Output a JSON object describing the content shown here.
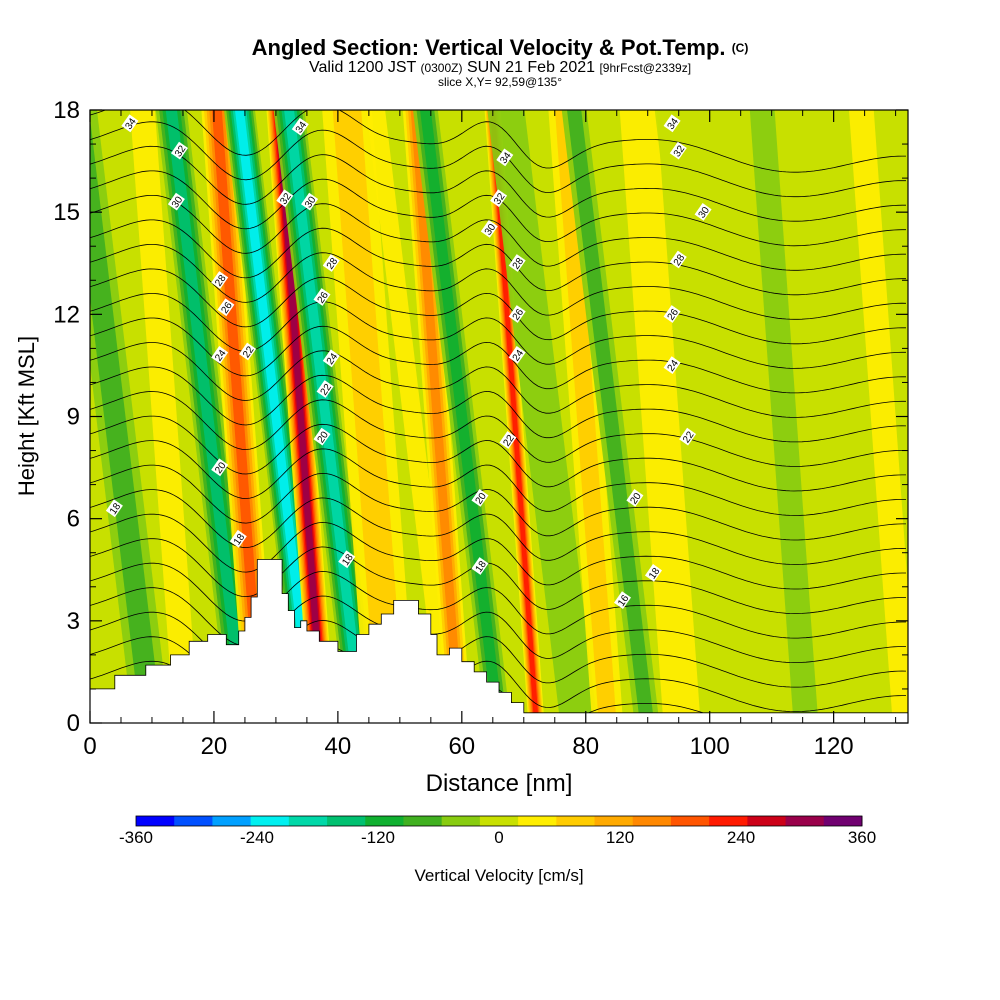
{
  "title": {
    "main": "Angled Section: Vertical Velocity & Pot.Temp.",
    "tag": "(C)",
    "valid": "Valid 1200 JST",
    "valid_zulu": "(0300Z)",
    "date": "SUN 21 Feb 2021",
    "forecast": "[9hrFcst@2339z]",
    "slice": "slice X,Y= 92,59@135°"
  },
  "chart_data": {
    "type": "heatmap",
    "title": "Angled Section: Vertical Velocity & Pot.Temp.",
    "xlabel": "Distance [nm]",
    "ylabel": "Height [Kft MSL]",
    "xlim": [
      0,
      132
    ],
    "ylim": [
      0,
      18
    ],
    "xticks": [
      0,
      20,
      40,
      60,
      80,
      100,
      120
    ],
    "yticks": [
      0,
      3,
      6,
      9,
      12,
      15,
      18
    ],
    "grid": false,
    "colorbar": {
      "label": "Vertical Velocity [cm/s]",
      "range": [
        -360,
        360
      ],
      "step": 40,
      "tick_labels": [
        "-360",
        "-240",
        "-120",
        "0",
        "120",
        "240",
        "360"
      ],
      "colors": [
        "#0000ff",
        "#0050ff",
        "#00a0ff",
        "#00f0f0",
        "#00d8a8",
        "#00c070",
        "#10b030",
        "#40b020",
        "#88cc10",
        "#c8e000",
        "#ffee00",
        "#ffcc00",
        "#ffaa00",
        "#ff8800",
        "#ff5500",
        "#ff1a00",
        "#cc0018",
        "#99004a",
        "#700070"
      ]
    },
    "velocity_bands": [
      {
        "x": 4,
        "w": 3,
        "v": -80
      },
      {
        "x": 12,
        "w": 2,
        "v": 40
      },
      {
        "x": 19,
        "w": 2.5,
        "v": -160
      },
      {
        "x": 24,
        "w": 2.5,
        "v": 230
      },
      {
        "x": 30,
        "w": 2.5,
        "v": -250
      },
      {
        "x": 34,
        "w": 2,
        "v": 340
      },
      {
        "x": 38,
        "w": 2.5,
        "v": -200
      },
      {
        "x": 45,
        "w": 4,
        "v": 90
      },
      {
        "x": 52,
        "w": 1.5,
        "v": 40
      },
      {
        "x": 56,
        "w": 2,
        "v": 160
      },
      {
        "x": 60,
        "w": 2,
        "v": -120
      },
      {
        "x": 68.5,
        "w": 1.3,
        "v": 270
      },
      {
        "x": 73,
        "w": 3,
        "v": -40
      },
      {
        "x": 80,
        "w": 2.5,
        "v": 80
      },
      {
        "x": 84,
        "w": 2,
        "v": -80
      },
      {
        "x": 92,
        "w": 3,
        "v": 70
      },
      {
        "x": 100,
        "w": 3,
        "v": 30
      },
      {
        "x": 112,
        "w": 2,
        "v": -40
      },
      {
        "x": 122,
        "w": 3,
        "v": 30
      },
      {
        "x": 128,
        "w": 2,
        "v": 40
      }
    ],
    "terrain": [
      [
        0,
        1
      ],
      [
        4,
        1
      ],
      [
        4,
        1.4
      ],
      [
        9,
        1.4
      ],
      [
        9,
        1.7
      ],
      [
        13,
        1.7
      ],
      [
        13,
        2.0
      ],
      [
        16,
        2.0
      ],
      [
        16,
        2.4
      ],
      [
        19,
        2.4
      ],
      [
        19,
        2.6
      ],
      [
        22,
        2.6
      ],
      [
        22,
        2.3
      ],
      [
        24,
        2.3
      ],
      [
        24,
        2.7
      ],
      [
        25,
        2.7
      ],
      [
        25,
        3.1
      ],
      [
        26,
        3.1
      ],
      [
        26,
        3.7
      ],
      [
        27,
        3.7
      ],
      [
        27,
        4.8
      ],
      [
        31,
        4.8
      ],
      [
        31,
        3.8
      ],
      [
        32,
        3.8
      ],
      [
        32,
        3.3
      ],
      [
        33,
        3.3
      ],
      [
        33,
        2.8
      ],
      [
        34,
        2.8
      ],
      [
        34,
        3.0
      ],
      [
        35,
        3.0
      ],
      [
        35,
        2.7
      ],
      [
        37,
        2.7
      ],
      [
        37,
        2.4
      ],
      [
        40,
        2.4
      ],
      [
        40,
        2.1
      ],
      [
        43,
        2.1
      ],
      [
        43,
        2.6
      ],
      [
        45,
        2.6
      ],
      [
        45,
        2.9
      ],
      [
        47,
        2.9
      ],
      [
        47,
        3.2
      ],
      [
        49,
        3.2
      ],
      [
        49,
        3.6
      ],
      [
        53,
        3.6
      ],
      [
        53,
        3.2
      ],
      [
        55,
        3.2
      ],
      [
        55,
        2.6
      ],
      [
        56,
        2.6
      ],
      [
        56,
        2.0
      ],
      [
        58,
        2.0
      ],
      [
        58,
        2.2
      ],
      [
        60,
        2.2
      ],
      [
        60,
        1.8
      ],
      [
        62,
        1.8
      ],
      [
        62,
        1.5
      ],
      [
        64,
        1.5
      ],
      [
        64,
        1.2
      ],
      [
        66,
        1.2
      ],
      [
        66,
        0.9
      ],
      [
        68,
        0.9
      ],
      [
        68,
        0.6
      ],
      [
        70,
        0.6
      ],
      [
        70,
        0.3
      ],
      [
        132,
        0.3
      ],
      [
        132,
        0
      ]
    ],
    "theta_labels": [
      {
        "text": "34",
        "x": 6.5,
        "y": 17.6
      },
      {
        "text": "32",
        "x": 14.5,
        "y": 16.8
      },
      {
        "text": "30",
        "x": 14,
        "y": 15.3
      },
      {
        "text": "28",
        "x": 21,
        "y": 13.0
      },
      {
        "text": "26",
        "x": 22,
        "y": 12.2
      },
      {
        "text": "24",
        "x": 21,
        "y": 10.8
      },
      {
        "text": "22",
        "x": 25.5,
        "y": 10.9
      },
      {
        "text": "20",
        "x": 21,
        "y": 7.5
      },
      {
        "text": "18",
        "x": 4,
        "y": 6.3
      },
      {
        "text": "18",
        "x": 24,
        "y": 5.4
      },
      {
        "text": "34",
        "x": 34,
        "y": 17.5
      },
      {
        "text": "32",
        "x": 31.5,
        "y": 15.4
      },
      {
        "text": "30",
        "x": 35.5,
        "y": 15.3
      },
      {
        "text": "28",
        "x": 39,
        "y": 13.5
      },
      {
        "text": "26",
        "x": 37.5,
        "y": 12.5
      },
      {
        "text": "24",
        "x": 39,
        "y": 10.7
      },
      {
        "text": "22",
        "x": 38,
        "y": 9.8
      },
      {
        "text": "20",
        "x": 37.5,
        "y": 8.4
      },
      {
        "text": "18",
        "x": 41.5,
        "y": 4.8
      },
      {
        "text": "34",
        "x": 67,
        "y": 16.6
      },
      {
        "text": "32",
        "x": 66,
        "y": 15.4
      },
      {
        "text": "30",
        "x": 64.5,
        "y": 14.5
      },
      {
        "text": "28",
        "x": 69,
        "y": 13.5
      },
      {
        "text": "26",
        "x": 69,
        "y": 12.0
      },
      {
        "text": "24",
        "x": 69,
        "y": 10.8
      },
      {
        "text": "22",
        "x": 67.5,
        "y": 8.3
      },
      {
        "text": "20",
        "x": 63,
        "y": 6.6
      },
      {
        "text": "18",
        "x": 63,
        "y": 4.6
      },
      {
        "text": "34",
        "x": 94,
        "y": 17.6
      },
      {
        "text": "32",
        "x": 95,
        "y": 16.8
      },
      {
        "text": "30",
        "x": 99,
        "y": 15.0
      },
      {
        "text": "28",
        "x": 95,
        "y": 13.6
      },
      {
        "text": "26",
        "x": 94,
        "y": 12.0
      },
      {
        "text": "24",
        "x": 94,
        "y": 10.5
      },
      {
        "text": "22",
        "x": 96.5,
        "y": 8.4
      },
      {
        "text": "20",
        "x": 88,
        "y": 6.6
      },
      {
        "text": "18",
        "x": 91,
        "y": 4.4
      },
      {
        "text": "16",
        "x": 86,
        "y": 3.6
      }
    ]
  }
}
